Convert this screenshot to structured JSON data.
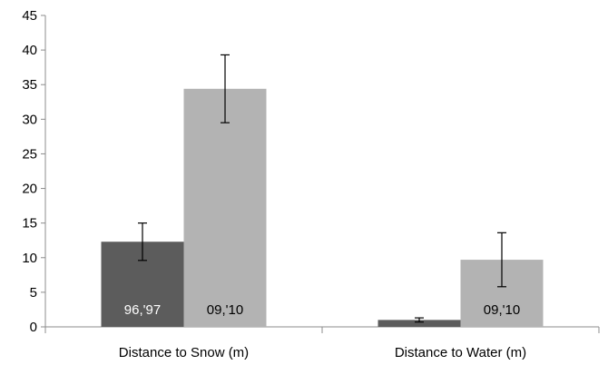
{
  "chart_data": {
    "type": "bar",
    "categories": [
      "Distance to Snow (m)",
      "Distance to Water (m)"
    ],
    "series": [
      {
        "label": "96,'97",
        "color": "#5c5c5c",
        "label_color": "#ffffff",
        "values": [
          12.3,
          1.0
        ],
        "errors": [
          2.7,
          0.3
        ]
      },
      {
        "label": "09,'10",
        "color": "#b3b3b3",
        "label_color": "#000000",
        "values": [
          34.4,
          9.7
        ],
        "errors": [
          4.9,
          3.9
        ]
      }
    ],
    "ylim": [
      0,
      45
    ],
    "yticks": [
      "0",
      "5",
      "10",
      "15",
      "20",
      "25",
      "30",
      "35",
      "40",
      "45"
    ],
    "title": "",
    "xlabel": "",
    "ylabel": "",
    "grid": false
  }
}
